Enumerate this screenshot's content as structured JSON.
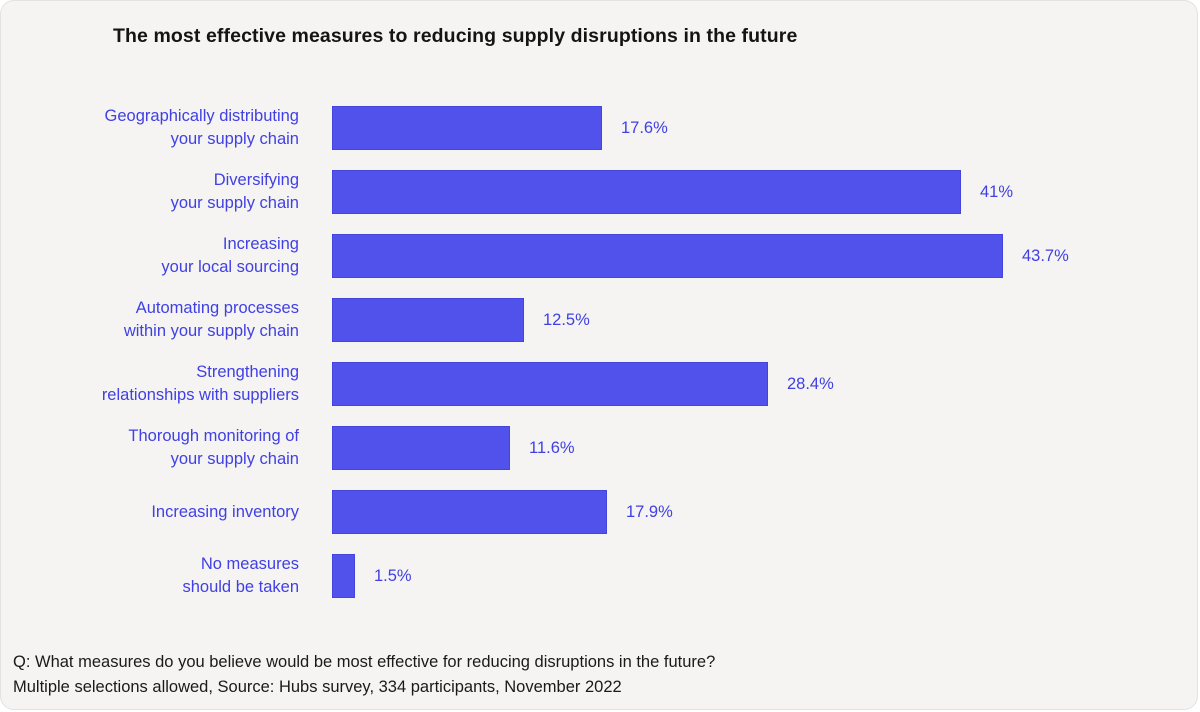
{
  "title": "The most effective measures to reducing supply disruptions in the future",
  "colors": {
    "bar_fill": "#5152EC",
    "bar_border": "#4345DD",
    "category_text": "#4040E4",
    "title_text": "#141414",
    "footer_text": "#1A1A1A",
    "card_background": "#F5F4F2"
  },
  "chart_data": {
    "type": "bar",
    "orientation": "horizontal",
    "title": "The most effective measures to reducing supply disruptions in the future",
    "xlabel": "",
    "ylabel": "",
    "xlim": [
      0,
      45
    ],
    "grid": false,
    "axes_hidden": true,
    "data_labels_position": "outside-end",
    "categories": [
      "Geographically distributing\nyour supply chain",
      "Diversifying\nyour supply chain",
      "Increasing\nyour local sourcing",
      "Automating processes\nwithin your supply chain",
      "Strengthening\nrelationships with suppliers",
      "Thorough monitoring of\nyour supply chain",
      "Increasing inventory",
      "No measures\nshould be taken"
    ],
    "values": [
      17.6,
      41,
      43.7,
      12.5,
      28.4,
      11.6,
      17.9,
      1.5
    ],
    "value_labels": [
      "17.6%",
      "41%",
      "43.7%",
      "12.5%",
      "28.4%",
      "11.6%",
      "17.9%",
      "1.5%"
    ]
  },
  "footer": {
    "question": "Q: What measures do you believe would be most effective for reducing disruptions in the future?",
    "source": "Multiple selections allowed, Source: Hubs survey, 334 participants, November 2022"
  }
}
